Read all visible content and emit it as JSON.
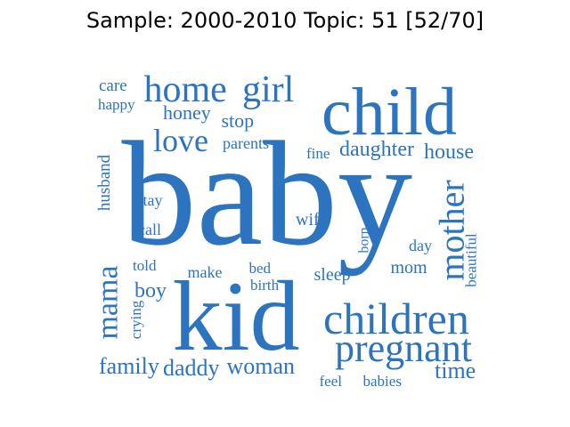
{
  "title": "Sample: 2000-2010 Topic: 51 [52/70]",
  "colors": {
    "word": "#2d74c0",
    "title": "#000000",
    "background": "#ffffff"
  },
  "words": [
    {
      "text": "baby",
      "rotate": 0
    },
    {
      "text": "kid",
      "rotate": 0
    },
    {
      "text": "child",
      "rotate": 0
    },
    {
      "text": "children",
      "rotate": 0
    },
    {
      "text": "home",
      "rotate": 0
    },
    {
      "text": "girl",
      "rotate": 0
    },
    {
      "text": "pregnant",
      "rotate": 0
    },
    {
      "text": "mother",
      "rotate": -90
    },
    {
      "text": "love",
      "rotate": 0
    },
    {
      "text": "mama",
      "rotate": -90
    },
    {
      "text": "family",
      "rotate": 0
    },
    {
      "text": "daddy",
      "rotate": 0
    },
    {
      "text": "woman",
      "rotate": 0
    },
    {
      "text": "daughter",
      "rotate": 0
    },
    {
      "text": "house",
      "rotate": 0
    },
    {
      "text": "time",
      "rotate": 0
    },
    {
      "text": "boy",
      "rotate": 0
    },
    {
      "text": "honey",
      "rotate": 0
    },
    {
      "text": "stop",
      "rotate": 0
    },
    {
      "text": "care",
      "rotate": 0
    },
    {
      "text": "happy",
      "rotate": 0
    },
    {
      "text": "parents",
      "rotate": 0
    },
    {
      "text": "fine",
      "rotate": 0
    },
    {
      "text": "husband",
      "rotate": -90
    },
    {
      "text": "stay",
      "rotate": 0
    },
    {
      "text": "call",
      "rotate": 0
    },
    {
      "text": "wife",
      "rotate": 0
    },
    {
      "text": "born",
      "rotate": -90
    },
    {
      "text": "day",
      "rotate": 0
    },
    {
      "text": "beautiful",
      "rotate": -90
    },
    {
      "text": "told",
      "rotate": 0
    },
    {
      "text": "make",
      "rotate": 0
    },
    {
      "text": "bed",
      "rotate": 0
    },
    {
      "text": "birth",
      "rotate": 0
    },
    {
      "text": "sleep",
      "rotate": 0
    },
    {
      "text": "mom",
      "rotate": 0
    },
    {
      "text": "crying",
      "rotate": -90
    },
    {
      "text": "feel",
      "rotate": 0
    },
    {
      "text": "babies",
      "rotate": 0
    }
  ]
}
